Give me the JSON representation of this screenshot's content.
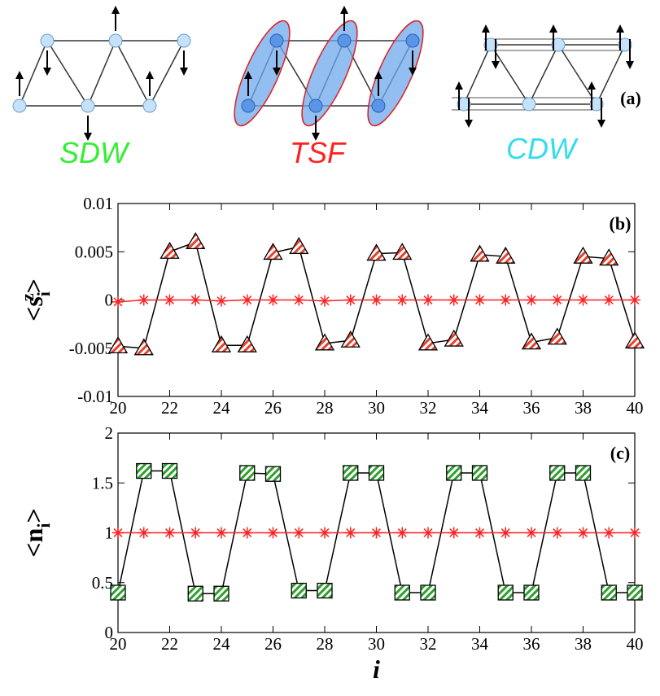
{
  "panel_a": {
    "label": "(a)",
    "phases": [
      "SDW",
      "TSF",
      "CDW"
    ]
  },
  "chart_data": [
    {
      "type": "line",
      "panel_label": "(b)",
      "ylabel_parts": [
        "<s",
        "i",
        "z",
        ">"
      ],
      "x": [
        20,
        21,
        22,
        23,
        24,
        25,
        26,
        27,
        28,
        29,
        30,
        31,
        32,
        33,
        34,
        35,
        36,
        37,
        38,
        39,
        40
      ],
      "xlim": [
        20,
        40
      ],
      "ylim": [
        -0.01,
        0.01
      ],
      "xticks": [
        20,
        22,
        24,
        26,
        28,
        30,
        32,
        34,
        36,
        38,
        40
      ],
      "yticks": [
        -0.01,
        -0.005,
        0,
        0.005,
        0.01
      ],
      "series": [
        {
          "marker": "triangle",
          "color": "#e8402a",
          "line_color": "#000000",
          "values": [
            -0.0048,
            -0.005,
            0.005,
            0.006,
            -0.0047,
            -0.0047,
            0.0049,
            0.0055,
            -0.0045,
            -0.0042,
            0.0048,
            0.0049,
            -0.0045,
            -0.0041,
            0.0047,
            0.0045,
            -0.0044,
            -0.0039,
            0.0045,
            0.0043,
            -0.0043
          ]
        },
        {
          "marker": "star",
          "color": "#ff2020",
          "line_color": "#ff2020",
          "values": [
            -0.0002,
            0,
            0,
            0,
            -0.0001,
            0,
            0,
            0,
            -0.0001,
            0,
            0,
            0,
            0,
            0,
            0,
            0,
            0,
            0,
            0,
            0,
            0
          ]
        }
      ]
    },
    {
      "type": "line",
      "panel_label": "(c)",
      "ylabel_parts": [
        "<n",
        "i",
        "",
        ">"
      ],
      "xlabel": "i",
      "x": [
        20,
        21,
        22,
        23,
        24,
        25,
        26,
        27,
        28,
        29,
        30,
        31,
        32,
        33,
        34,
        35,
        36,
        37,
        38,
        39,
        40
      ],
      "xlim": [
        20,
        40
      ],
      "ylim": [
        0,
        2
      ],
      "xticks": [
        20,
        22,
        24,
        26,
        28,
        30,
        32,
        34,
        36,
        38,
        40
      ],
      "yticks": [
        0,
        0.5,
        1,
        1.5,
        2
      ],
      "series": [
        {
          "marker": "square",
          "color": "#2ea02e",
          "line_color": "#000000",
          "values": [
            0.4,
            1.62,
            1.62,
            0.39,
            0.39,
            1.6,
            1.59,
            0.42,
            0.42,
            1.6,
            1.6,
            0.4,
            0.4,
            1.6,
            1.6,
            0.4,
            0.4,
            1.6,
            1.6,
            0.4,
            0.4
          ]
        },
        {
          "marker": "star",
          "color": "#ff2020",
          "line_color": "#ff2020",
          "values": [
            1,
            1,
            1,
            1,
            1,
            1,
            1,
            1,
            1,
            1,
            1,
            1,
            1,
            1,
            1,
            1,
            1,
            1,
            1,
            1,
            1
          ]
        }
      ]
    }
  ]
}
